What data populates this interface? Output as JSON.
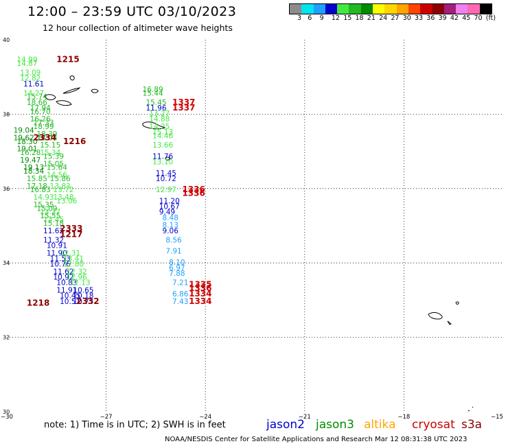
{
  "title": "12:00 – 23:59 UTC 03/10/2023",
  "subtitle": "12 hour collection of altimeter wave heights",
  "legend": {
    "colors": [
      "#8c8c8c",
      "#00e5ee",
      "#1fa0ff",
      "#0000cd",
      "#43e843",
      "#22b922",
      "#008b00",
      "#ffff00",
      "#ffd700",
      "#ffa500",
      "#ff4500",
      "#cd0000",
      "#8b0000",
      "#a0207a",
      "#ee82ee",
      "#ff69b4",
      "#000000"
    ],
    "labels": [
      "3",
      "6",
      "9",
      "12",
      "15",
      "18",
      "21",
      "24",
      "27",
      "30",
      "33",
      "36",
      "39",
      "42",
      "45",
      "70",
      "(ft)"
    ]
  },
  "axes": {
    "lat_labels": [
      "40",
      "38",
      "36",
      "34",
      "32",
      "30"
    ],
    "lon_labels": [
      "−30",
      "−27",
      "−24",
      "−21",
      "−18",
      "−15"
    ]
  },
  "note": "note:  1) Time is in UTC;  2) SWH is in feet",
  "credit": "NOAA/NESDIS Center for Satellite Applications and Research    Mar 12 08:31:38 UTC 2023",
  "missions": [
    {
      "name": "jason2",
      "color": "#0000cd"
    },
    {
      "name": "jason3",
      "color": "#008b00"
    },
    {
      "name": "altika",
      "color": "#ffa500"
    },
    {
      "name": "cryosat",
      "color": "#cd0000"
    },
    {
      "name": "s3a",
      "color": "#8b0000"
    }
  ],
  "map_data": {
    "colors": {
      "lightgreen": "#43e843",
      "green": "#22b922",
      "darkgreen": "#008b00",
      "blue": "#0000cd",
      "cyan": "#1fa0ff",
      "red": "#cd0000",
      "darkred": "#8b0000"
    },
    "labels": [
      {
        "t": "14.99",
        "c": "lightgreen",
        "lon": -29.7,
        "lat": 39.4
      },
      {
        "t": "14.87",
        "c": "lightgreen",
        "lon": -29.7,
        "lat": 39.3
      },
      {
        "t": "13.09",
        "c": "lightgreen",
        "lon": -29.6,
        "lat": 39.05
      },
      {
        "t": "12.82",
        "c": "lightgreen",
        "lon": -29.6,
        "lat": 38.9
      },
      {
        "t": "11.61",
        "c": "blue",
        "lon": -29.5,
        "lat": 38.75
      },
      {
        "t": "14.27",
        "c": "lightgreen",
        "lon": -29.5,
        "lat": 38.5
      },
      {
        "t": "15.74",
        "c": "green",
        "lon": -29.4,
        "lat": 38.4
      },
      {
        "t": "18.66",
        "c": "green",
        "lon": -29.4,
        "lat": 38.25
      },
      {
        "t": "17.94",
        "c": "green",
        "lon": -29.3,
        "lat": 38.1
      },
      {
        "t": "16.70",
        "c": "green",
        "lon": -29.3,
        "lat": 38.0
      },
      {
        "t": "16.26",
        "c": "green",
        "lon": -29.3,
        "lat": 37.8
      },
      {
        "t": "17.33",
        "c": "green",
        "lon": -29.2,
        "lat": 37.7
      },
      {
        "t": "18.99",
        "c": "green",
        "lon": -29.2,
        "lat": 37.6
      },
      {
        "t": "18.39",
        "c": "green",
        "lon": -29.1,
        "lat": 37.4
      },
      {
        "t": "18.04",
        "c": "darkgreen",
        "lon": -29.1,
        "lat": 37.3
      },
      {
        "t": "15.15",
        "c": "green",
        "lon": -29.0,
        "lat": 37.1
      },
      {
        "t": "15.34",
        "c": "lightgreen",
        "lon": -29.0,
        "lat": 36.9
      },
      {
        "t": "15.39",
        "c": "green",
        "lon": -28.9,
        "lat": 36.8
      },
      {
        "t": "15.05",
        "c": "green",
        "lon": -28.9,
        "lat": 36.6
      },
      {
        "t": "15.64",
        "c": "green",
        "lon": -28.8,
        "lat": 36.5
      },
      {
        "t": "14.56",
        "c": "lightgreen",
        "lon": -28.8,
        "lat": 36.3
      },
      {
        "t": "15.86",
        "c": "green",
        "lon": -28.7,
        "lat": 36.2
      },
      {
        "t": "13.83",
        "c": "lightgreen",
        "lon": -28.7,
        "lat": 36.0
      },
      {
        "t": "13.72",
        "c": "lightgreen",
        "lon": -28.6,
        "lat": 35.9
      },
      {
        "t": "13.48",
        "c": "lightgreen",
        "lon": -28.6,
        "lat": 35.7
      },
      {
        "t": "13.06",
        "c": "lightgreen",
        "lon": -28.5,
        "lat": 35.6
      },
      {
        "t": "19.04",
        "c": "darkgreen",
        "lon": -29.8,
        "lat": 37.5
      },
      {
        "t": "19.62",
        "c": "darkgreen",
        "lon": -29.8,
        "lat": 37.3
      },
      {
        "t": "18.30",
        "c": "darkgreen",
        "lon": -29.7,
        "lat": 37.2
      },
      {
        "t": "19.01",
        "c": "darkgreen",
        "lon": -29.7,
        "lat": 37.0
      },
      {
        "t": "16.28",
        "c": "green",
        "lon": -29.6,
        "lat": 36.9
      },
      {
        "t": "19.47",
        "c": "darkgreen",
        "lon": -29.6,
        "lat": 36.7
      },
      {
        "t": "19.13",
        "c": "darkgreen",
        "lon": -29.5,
        "lat": 36.5
      },
      {
        "t": "18.34",
        "c": "darkgreen",
        "lon": -29.5,
        "lat": 36.4
      },
      {
        "t": "15.85",
        "c": "green",
        "lon": -29.4,
        "lat": 36.2
      },
      {
        "t": "17.18",
        "c": "green",
        "lon": -29.4,
        "lat": 36.0
      },
      {
        "t": "16.83",
        "c": "green",
        "lon": -29.3,
        "lat": 35.9
      },
      {
        "t": "14.93",
        "c": "lightgreen",
        "lon": -29.2,
        "lat": 35.7
      },
      {
        "t": "15.35",
        "c": "green",
        "lon": -29.2,
        "lat": 35.5
      },
      {
        "t": "15.09",
        "c": "green",
        "lon": -29.1,
        "lat": 35.4
      },
      {
        "t": "13.37",
        "c": "lightgreen",
        "lon": -29.0,
        "lat": 35.3
      },
      {
        "t": "15.55",
        "c": "green",
        "lon": -29.0,
        "lat": 35.2
      },
      {
        "t": "13.45",
        "c": "lightgreen",
        "lon": -28.9,
        "lat": 35.1
      },
      {
        "t": "15.18",
        "c": "green",
        "lon": -28.9,
        "lat": 35.0
      },
      {
        "t": "11.62",
        "c": "blue",
        "lon": -28.9,
        "lat": 34.8
      },
      {
        "t": "11.32",
        "c": "blue",
        "lon": -28.9,
        "lat": 34.55
      },
      {
        "t": "10.91",
        "c": "blue",
        "lon": -28.8,
        "lat": 34.4
      },
      {
        "t": "11.90",
        "c": "blue",
        "lon": -28.8,
        "lat": 34.2
      },
      {
        "t": "11.53",
        "c": "blue",
        "lon": -28.7,
        "lat": 34.05
      },
      {
        "t": "10.76",
        "c": "blue",
        "lon": -28.7,
        "lat": 33.9
      },
      {
        "t": "11.62",
        "c": "blue",
        "lon": -28.6,
        "lat": 33.7
      },
      {
        "t": "10.92",
        "c": "blue",
        "lon": -28.6,
        "lat": 33.55
      },
      {
        "t": "10.83",
        "c": "blue",
        "lon": -28.5,
        "lat": 33.4
      },
      {
        "t": "11.91",
        "c": "blue",
        "lon": -28.5,
        "lat": 33.2
      },
      {
        "t": "10.45",
        "c": "blue",
        "lon": -28.4,
        "lat": 33.05
      },
      {
        "t": "10.51",
        "c": "blue",
        "lon": -28.4,
        "lat": 32.9
      },
      {
        "t": "12.31",
        "c": "lightgreen",
        "lon": -28.4,
        "lat": 34.2
      },
      {
        "t": "13.41",
        "c": "lightgreen",
        "lon": -28.3,
        "lat": 34.05
      },
      {
        "t": "12.80",
        "c": "lightgreen",
        "lon": -28.3,
        "lat": 33.9
      },
      {
        "t": "12.32",
        "c": "lightgreen",
        "lon": -28.2,
        "lat": 33.7
      },
      {
        "t": "12.96",
        "c": "lightgreen",
        "lon": -28.2,
        "lat": 33.55
      },
      {
        "t": "12.13",
        "c": "lightgreen",
        "lon": -28.1,
        "lat": 33.4
      },
      {
        "t": "10.65",
        "c": "blue",
        "lon": -28.0,
        "lat": 33.2
      },
      {
        "t": "10.18",
        "c": "blue",
        "lon": -28.0,
        "lat": 33.05
      },
      {
        "t": "10.75",
        "c": "blue",
        "lon": -28.0,
        "lat": 32.9
      },
      {
        "t": "16.89",
        "c": "green",
        "lon": -25.9,
        "lat": 38.6
      },
      {
        "t": "15.44",
        "c": "green",
        "lon": -25.9,
        "lat": 38.5
      },
      {
        "t": "15.45",
        "c": "green",
        "lon": -25.8,
        "lat": 38.25
      },
      {
        "t": "11.96",
        "c": "blue",
        "lon": -25.8,
        "lat": 38.1
      },
      {
        "t": "13.27",
        "c": "lightgreen",
        "lon": -25.7,
        "lat": 37.95
      },
      {
        "t": "14.88",
        "c": "lightgreen",
        "lon": -25.7,
        "lat": 37.8
      },
      {
        "t": "14.25",
        "c": "lightgreen",
        "lon": -25.7,
        "lat": 37.6
      },
      {
        "t": "15.13",
        "c": "lightgreen",
        "lon": -25.6,
        "lat": 37.45
      },
      {
        "t": "14.46",
        "c": "lightgreen",
        "lon": -25.6,
        "lat": 37.35
      },
      {
        "t": "13.66",
        "c": "lightgreen",
        "lon": -25.6,
        "lat": 37.1
      },
      {
        "t": "11.76",
        "c": "blue",
        "lon": -25.6,
        "lat": 36.8
      },
      {
        "t": "13.10",
        "c": "lightgreen",
        "lon": -25.6,
        "lat": 36.65
      },
      {
        "t": "11.45",
        "c": "blue",
        "lon": -25.5,
        "lat": 36.35
      },
      {
        "t": "10.72",
        "c": "blue",
        "lon": -25.5,
        "lat": 36.2
      },
      {
        "t": "12.97",
        "c": "lightgreen",
        "lon": -25.5,
        "lat": 35.9
      },
      {
        "t": "11.20",
        "c": "blue",
        "lon": -25.4,
        "lat": 35.6
      },
      {
        "t": "10.67",
        "c": "blue",
        "lon": -25.4,
        "lat": 35.45
      },
      {
        "t": "9.49",
        "c": "blue",
        "lon": -25.4,
        "lat": 35.3
      },
      {
        "t": "8.48",
        "c": "cyan",
        "lon": -25.3,
        "lat": 35.15
      },
      {
        "t": "8.13",
        "c": "cyan",
        "lon": -25.3,
        "lat": 34.95
      },
      {
        "t": "9.06",
        "c": "blue",
        "lon": -25.3,
        "lat": 34.8
      },
      {
        "t": "8.56",
        "c": "cyan",
        "lon": -25.2,
        "lat": 34.55
      },
      {
        "t": "7.91",
        "c": "cyan",
        "lon": -25.2,
        "lat": 34.25
      },
      {
        "t": "8.10",
        "c": "cyan",
        "lon": -25.1,
        "lat": 33.95
      },
      {
        "t": "6.97",
        "c": "cyan",
        "lon": -25.1,
        "lat": 33.8
      },
      {
        "t": "7.88",
        "c": "cyan",
        "lon": -25.1,
        "lat": 33.65
      },
      {
        "t": "7.21",
        "c": "cyan",
        "lon": -25.0,
        "lat": 33.4
      },
      {
        "t": "6.86",
        "c": "cyan",
        "lon": -25.0,
        "lat": 33.1
      },
      {
        "t": "7.43",
        "c": "cyan",
        "lon": -25.0,
        "lat": 32.9
      }
    ],
    "passes": [
      {
        "t": "1215",
        "c": "darkred",
        "lon": -28.5,
        "lat": 39.4
      },
      {
        "t": "1337",
        "c": "red",
        "lon": -25.0,
        "lat": 38.25
      },
      {
        "t": "1337",
        "c": "red",
        "lon": -25.0,
        "lat": 38.1
      },
      {
        "t": "2334",
        "c": "darkred",
        "lon": -29.2,
        "lat": 37.3
      },
      {
        "t": "1216",
        "c": "darkred",
        "lon": -28.3,
        "lat": 37.2
      },
      {
        "t": "1336",
        "c": "red",
        "lon": -24.7,
        "lat": 35.9
      },
      {
        "t": "1336",
        "c": "red",
        "lon": -24.7,
        "lat": 35.8
      },
      {
        "t": "2333",
        "c": "darkred",
        "lon": -28.4,
        "lat": 34.85
      },
      {
        "t": "1217",
        "c": "darkred",
        "lon": -28.4,
        "lat": 34.7
      },
      {
        "t": "1335",
        "c": "red",
        "lon": -24.5,
        "lat": 33.35
      },
      {
        "t": "1336",
        "c": "red",
        "lon": -24.5,
        "lat": 33.25
      },
      {
        "t": "1334",
        "c": "red",
        "lon": -24.5,
        "lat": 33.1
      },
      {
        "t": "1334",
        "c": "red",
        "lon": -24.5,
        "lat": 32.9
      },
      {
        "t": "1218",
        "c": "darkred",
        "lon": -29.4,
        "lat": 32.85
      },
      {
        "t": "2332",
        "c": "darkred",
        "lon": -27.9,
        "lat": 32.9
      }
    ]
  }
}
